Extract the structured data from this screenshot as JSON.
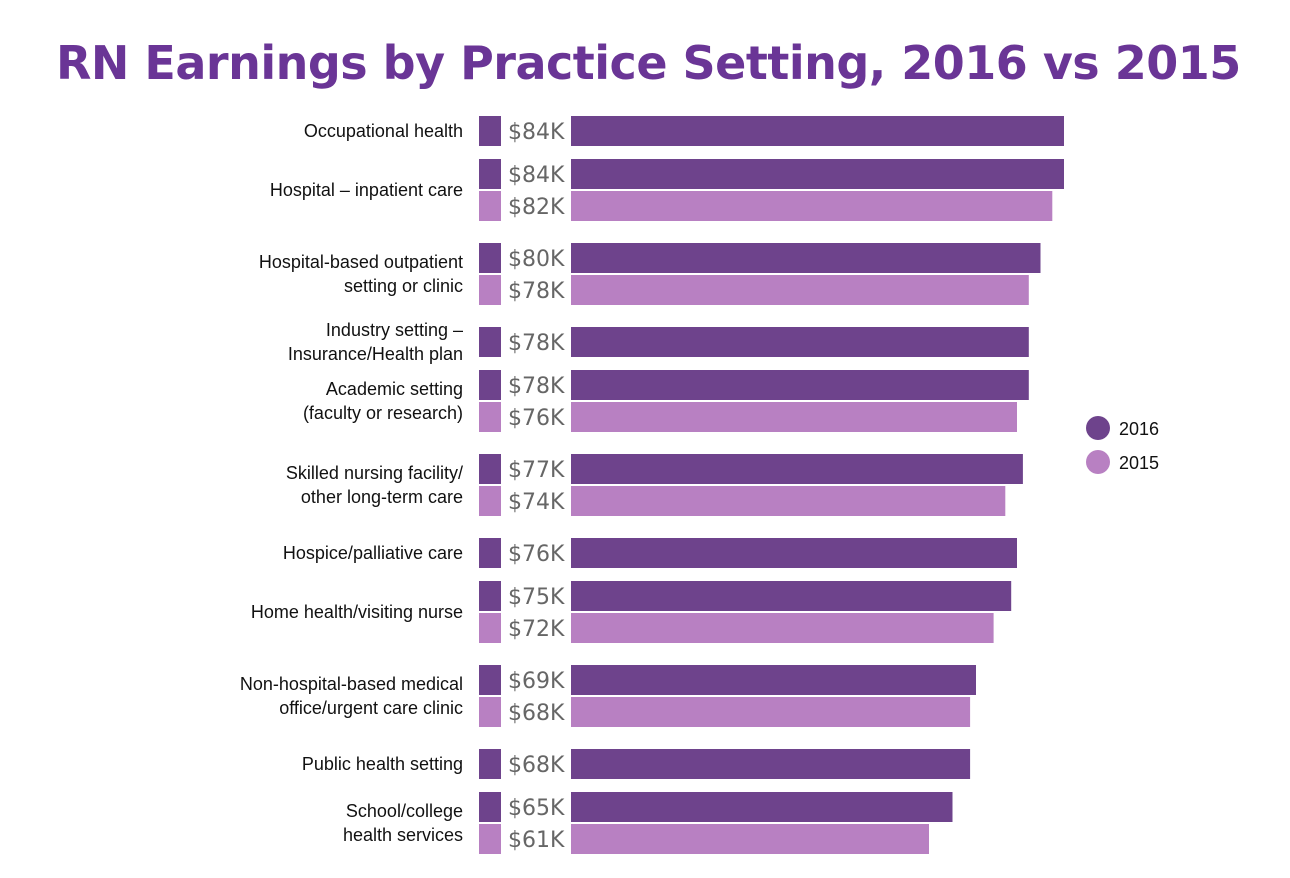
{
  "chart_data": {
    "type": "bar",
    "orientation": "horizontal",
    "title": "RN Earnings by Practice Setting, 2016 vs 2015",
    "xlabel": "",
    "ylabel": "",
    "xlim": [
      0,
      84
    ],
    "grid": false,
    "legend_position": "right",
    "colors": {
      "2016": "#6e438c",
      "2015": "#b880c2"
    },
    "categories": [
      [
        "Occupational health"
      ],
      [
        "Hospital – inpatient care"
      ],
      [
        "Hospital-based outpatient",
        "setting or clinic"
      ],
      [
        "Industry setting –",
        "Insurance/Health plan"
      ],
      [
        "Academic setting",
        "(faculty or research)"
      ],
      [
        "Skilled nursing facility/",
        "other long-term care"
      ],
      [
        "Hospice/palliative care"
      ],
      [
        "Home health/visiting nurse"
      ],
      [
        "Non-hospital-based medical",
        "office/urgent care clinic"
      ],
      [
        "Public health setting"
      ],
      [
        "School/college",
        "health services"
      ]
    ],
    "series": [
      {
        "name": "2016",
        "values": [
          84,
          84,
          80,
          78,
          78,
          77,
          76,
          75,
          69,
          68,
          65
        ],
        "labels": [
          "$84K",
          "$84K",
          "$80K",
          "$78K",
          "$78K",
          "$77K",
          "$76K",
          "$75K",
          "$69K",
          "$68K",
          "$65K"
        ]
      },
      {
        "name": "2015",
        "values": [
          null,
          82,
          78,
          null,
          76,
          74,
          null,
          72,
          68,
          null,
          61
        ],
        "labels": [
          null,
          "$82K",
          "$78K",
          null,
          "$76K",
          "$74K",
          null,
          "$72K",
          "$68K",
          null,
          "$61K"
        ]
      }
    ]
  }
}
